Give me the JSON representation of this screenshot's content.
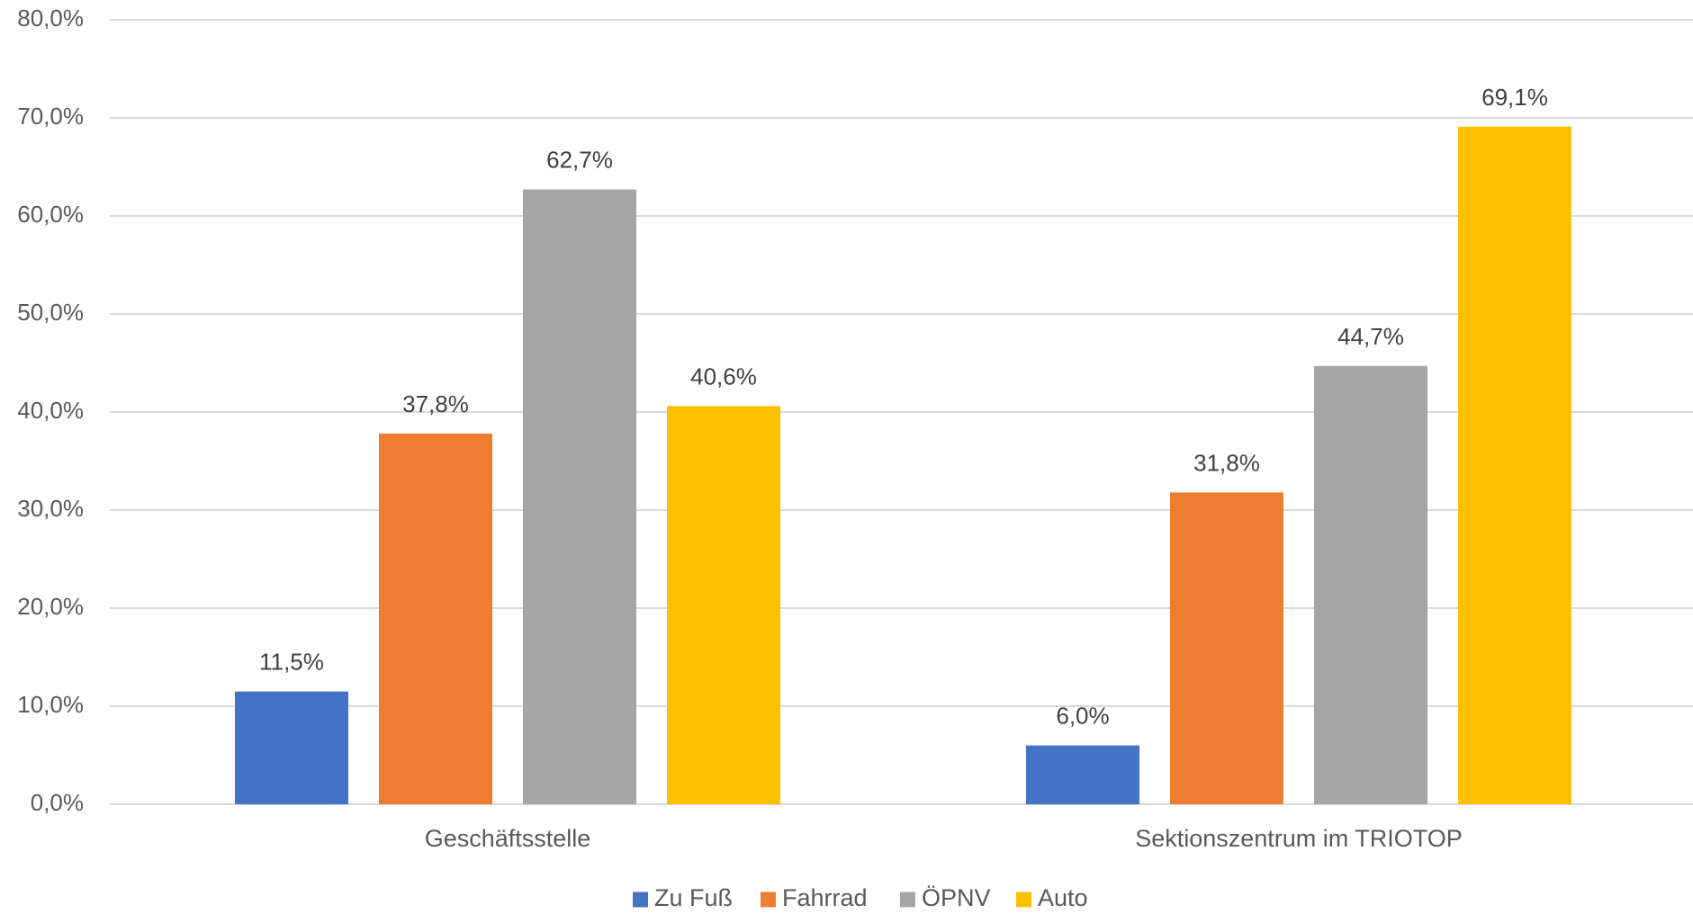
{
  "chart_data": {
    "type": "bar",
    "title": "",
    "xlabel": "",
    "ylabel": "",
    "categories": [
      "Geschäftsstelle",
      "Sektionszentrum im TRIOTOP"
    ],
    "series": [
      {
        "name": "Zu Fuß",
        "values": [
          11.5,
          6.0
        ],
        "labels": [
          "11,5%",
          "6,0%"
        ],
        "color": "#4472C4"
      },
      {
        "name": "Fahrrad",
        "values": [
          37.8,
          31.8
        ],
        "labels": [
          "37,8%",
          "31,8%"
        ],
        "color": "#ED7D31"
      },
      {
        "name": "ÖPNV",
        "values": [
          62.7,
          44.7
        ],
        "labels": [
          "62,7%",
          "44,7%"
        ],
        "color": "#A5A5A5"
      },
      {
        "name": "Auto",
        "values": [
          40.6,
          69.1
        ],
        "labels": [
          "40,6%",
          "69,1%"
        ],
        "color": "#FFC000"
      }
    ],
    "ylim": [
      0,
      80
    ],
    "yticks": [
      0,
      10,
      20,
      30,
      40,
      50,
      60,
      70,
      80
    ],
    "ytick_labels": [
      "0,0%",
      "10,0%",
      "20,0%",
      "30,0%",
      "40,0%",
      "50,0%",
      "60,0%",
      "70,0%",
      "80,0%"
    ],
    "grid": true,
    "legend_position": "bottom",
    "gridline_color": "#D9D9D9"
  }
}
